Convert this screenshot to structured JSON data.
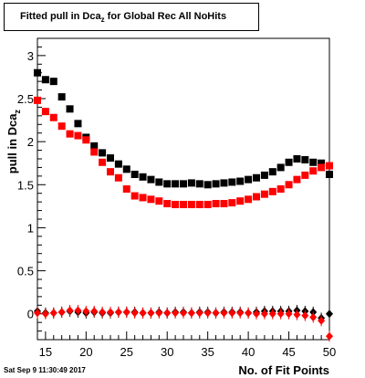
{
  "title": {
    "main": "Fitted pull in Dca",
    "subscript": "z",
    "suffix": " for Global Rec All NoHits"
  },
  "timestamp": "Sat Sep  9 11:30:49 2017",
  "chart_data": {
    "type": "scatter",
    "xlabel": "No. of Fit Points",
    "ylabel_main": "pull in Dca",
    "ylabel_sub": "z",
    "xlim": [
      14,
      50
    ],
    "ylim": [
      -0.3,
      3.2
    ],
    "xticks_major": [
      15,
      20,
      25,
      30,
      35,
      40,
      45,
      50
    ],
    "yticks_major": [
      0,
      0.5,
      1,
      1.5,
      2,
      2.5,
      3
    ],
    "yticks_labels": [
      "0",
      "0.5",
      "1",
      "1.5",
      "2",
      "2.5",
      "3"
    ],
    "grid": false,
    "series": [
      {
        "role": "sigma",
        "color": "#000000",
        "marker": "square",
        "x": [
          14,
          15,
          16,
          17,
          18,
          19,
          20,
          21,
          22,
          23,
          24,
          25,
          26,
          27,
          28,
          29,
          30,
          31,
          32,
          33,
          34,
          35,
          36,
          37,
          38,
          39,
          40,
          41,
          42,
          43,
          44,
          45,
          46,
          47,
          48,
          49,
          50
        ],
        "y": [
          2.8,
          2.72,
          2.7,
          2.52,
          2.38,
          2.21,
          2.05,
          1.95,
          1.87,
          1.81,
          1.74,
          1.68,
          1.62,
          1.59,
          1.56,
          1.53,
          1.51,
          1.51,
          1.51,
          1.52,
          1.51,
          1.5,
          1.51,
          1.52,
          1.53,
          1.54,
          1.56,
          1.58,
          1.61,
          1.65,
          1.7,
          1.76,
          1.8,
          1.79,
          1.76,
          1.75,
          1.62
        ]
      },
      {
        "role": "sigma",
        "color": "#ff0000",
        "marker": "square",
        "x": [
          14,
          15,
          16,
          17,
          18,
          19,
          20,
          21,
          22,
          23,
          24,
          25,
          26,
          27,
          28,
          29,
          30,
          31,
          32,
          33,
          34,
          35,
          36,
          37,
          38,
          39,
          40,
          41,
          42,
          43,
          44,
          45,
          46,
          47,
          48,
          49,
          50
        ],
        "y": [
          2.48,
          2.35,
          2.28,
          2.18,
          2.09,
          2.07,
          2.02,
          1.88,
          1.76,
          1.65,
          1.58,
          1.45,
          1.37,
          1.35,
          1.33,
          1.31,
          1.28,
          1.27,
          1.27,
          1.27,
          1.27,
          1.27,
          1.28,
          1.28,
          1.29,
          1.31,
          1.33,
          1.36,
          1.39,
          1.42,
          1.45,
          1.5,
          1.56,
          1.61,
          1.66,
          1.7,
          1.72
        ]
      },
      {
        "role": "mean",
        "color": "#000000",
        "marker": "diamond",
        "x": [
          14,
          15,
          16,
          17,
          18,
          19,
          20,
          21,
          22,
          23,
          24,
          25,
          26,
          27,
          28,
          29,
          30,
          31,
          32,
          33,
          34,
          35,
          36,
          37,
          38,
          39,
          40,
          41,
          42,
          43,
          44,
          45,
          46,
          47,
          48,
          49,
          50
        ],
        "y": [
          0.03,
          0.01,
          0.01,
          0.02,
          0.03,
          0.02,
          0.01,
          0.02,
          0.01,
          0.01,
          0.02,
          0.02,
          0.02,
          0.01,
          0.01,
          0.02,
          0.01,
          0.02,
          0.02,
          0.01,
          0.02,
          0.02,
          0.01,
          0.02,
          0.02,
          0.02,
          0.01,
          0.02,
          0.03,
          0.03,
          0.03,
          0.03,
          0.04,
          0.03,
          0.02,
          -0.05,
          0.0
        ]
      },
      {
        "role": "mean",
        "color": "#ff0000",
        "marker": "diamond",
        "x": [
          14,
          15,
          16,
          17,
          18,
          19,
          20,
          21,
          22,
          23,
          24,
          25,
          26,
          27,
          28,
          29,
          30,
          31,
          32,
          33,
          34,
          35,
          36,
          37,
          38,
          39,
          40,
          41,
          42,
          43,
          44,
          45,
          46,
          47,
          48,
          49,
          50
        ],
        "y": [
          0.01,
          0.0,
          0.01,
          0.02,
          0.04,
          0.04,
          0.03,
          0.03,
          0.02,
          0.02,
          0.02,
          0.02,
          0.01,
          0.01,
          0.01,
          0.01,
          0.01,
          0.01,
          0.01,
          0.01,
          0.01,
          0.01,
          0.01,
          0.01,
          0.01,
          0.01,
          0.01,
          0.0,
          0.0,
          0.0,
          0.0,
          0.0,
          -0.01,
          -0.02,
          -0.04,
          -0.08,
          -0.26
        ]
      }
    ]
  }
}
